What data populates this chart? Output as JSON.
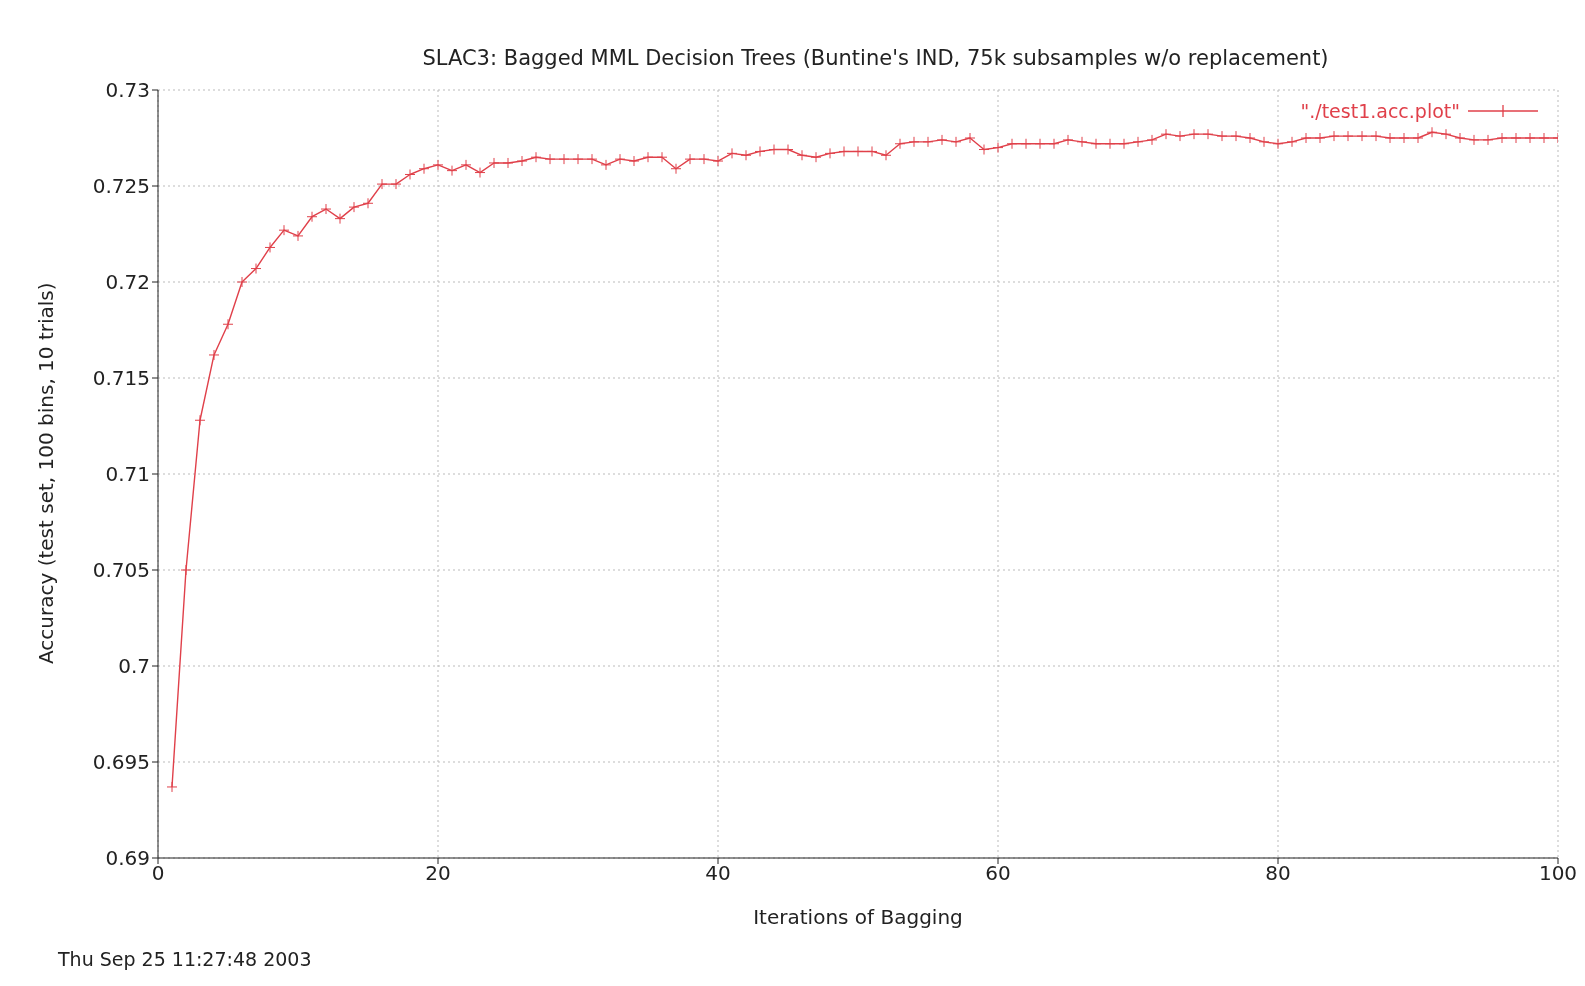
{
  "chart_data": {
    "type": "line",
    "title": "SLAC3: Bagged MML Decision Trees (Buntine's IND, 75k subsamples w/o replacement)",
    "xlabel": "Iterations of Bagging",
    "ylabel": "Accuracy (test set, 100 bins, 10 trials)",
    "annotations": [
      "Thu Sep 25 11:27:48 2003"
    ],
    "x": [
      1,
      2,
      3,
      4,
      5,
      6,
      7,
      8,
      9,
      10,
      11,
      12,
      13,
      14,
      15,
      16,
      17,
      18,
      19,
      20,
      21,
      22,
      23,
      24,
      25,
      26,
      27,
      28,
      29,
      30,
      31,
      32,
      33,
      34,
      35,
      36,
      37,
      38,
      39,
      40,
      41,
      42,
      43,
      44,
      45,
      46,
      47,
      48,
      49,
      50,
      51,
      52,
      53,
      54,
      55,
      56,
      57,
      58,
      59,
      60,
      61,
      62,
      63,
      64,
      65,
      66,
      67,
      68,
      69,
      70,
      71,
      72,
      73,
      74,
      75,
      76,
      77,
      78,
      79,
      80,
      81,
      82,
      83,
      84,
      85,
      86,
      87,
      88,
      89,
      90,
      91,
      92,
      93,
      94,
      95,
      96,
      97,
      98,
      99,
      100
    ],
    "series": [
      {
        "name": "\"./test1.acc.plot\"",
        "color": "#e0404a",
        "values": [
          0.6937,
          0.705,
          0.7128,
          0.7162,
          0.7178,
          0.72,
          0.7207,
          0.7218,
          0.7227,
          0.7224,
          0.7234,
          0.7238,
          0.7233,
          0.7239,
          0.7241,
          0.7251,
          0.7251,
          0.7256,
          0.7259,
          0.7261,
          0.7258,
          0.7261,
          0.7257,
          0.7262,
          0.7262,
          0.7263,
          0.7265,
          0.7264,
          0.7264,
          0.7264,
          0.7264,
          0.7261,
          0.7264,
          0.7263,
          0.7265,
          0.7265,
          0.7259,
          0.7264,
          0.7264,
          0.7263,
          0.7267,
          0.7266,
          0.7268,
          0.7269,
          0.7269,
          0.7266,
          0.7265,
          0.7267,
          0.7268,
          0.7268,
          0.7268,
          0.7266,
          0.7272,
          0.7273,
          0.7273,
          0.7274,
          0.7273,
          0.7275,
          0.7269,
          0.727,
          0.7272,
          0.7272,
          0.7272,
          0.7272,
          0.7274,
          0.7273,
          0.7272,
          0.7272,
          0.7272,
          0.7273,
          0.7274,
          0.7277,
          0.7276,
          0.7277,
          0.7277,
          0.7276,
          0.7276,
          0.7275,
          0.7273,
          0.7272,
          0.7273,
          0.7275,
          0.7275,
          0.7276,
          0.7276,
          0.7276,
          0.7276,
          0.7275,
          0.7275,
          0.7275,
          0.7278,
          0.7277,
          0.7275,
          0.7274,
          0.7274,
          0.7275,
          0.7275,
          0.7275,
          0.7275,
          0.7275
        ]
      }
    ],
    "xlim": [
      0,
      100
    ],
    "xticks": [
      0,
      20,
      40,
      60,
      80,
      100
    ],
    "ylim": [
      0.69,
      0.73
    ],
    "yticks": [
      0.69,
      0.695,
      0.7,
      0.705,
      0.71,
      0.715,
      0.72,
      0.725,
      0.73
    ],
    "grid": true,
    "legend": "top right",
    "marker": "cross",
    "line_style": "solid"
  }
}
